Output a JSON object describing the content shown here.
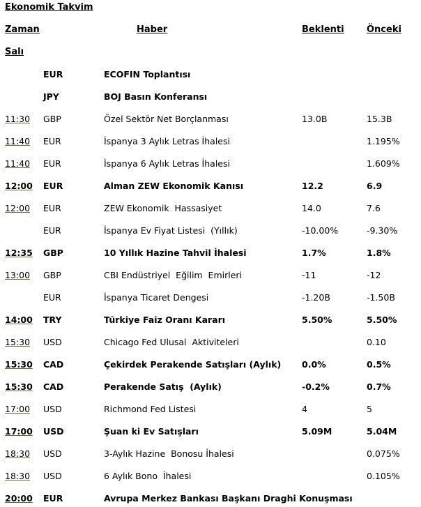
{
  "page": {
    "title": "Ekonomik Takvim"
  },
  "columns": {
    "time": "Zaman",
    "event": "Haber",
    "expected": "Beklenti",
    "previous": "Önceki"
  },
  "day": "Salı",
  "rows": [
    {
      "time": "",
      "currency": "EUR",
      "event": "ECOFIN Toplantısı",
      "expected": "",
      "previous": "",
      "bold": true
    },
    {
      "time": "",
      "currency": "JPY",
      "event": "BOJ Basın Konferansı",
      "expected": "",
      "previous": "",
      "bold": true
    },
    {
      "time": "11:30",
      "currency": "GBP",
      "event": "Özel Sektör Net Borçlanması",
      "expected": "13.0B",
      "previous": "15.3B",
      "bold": false
    },
    {
      "time": "11:40",
      "currency": "EUR",
      "event": "İspanya 3 Aylık Letras İhalesi",
      "expected": "",
      "previous": "1.195%",
      "bold": false
    },
    {
      "time": "11:40",
      "currency": "EUR",
      "event": "İspanya 6 Aylık Letras İhalesi",
      "expected": "",
      "previous": "1.609%",
      "bold": false
    },
    {
      "time": "12:00",
      "currency": "EUR",
      "event": "Alman ZEW Ekonomik Kanısı",
      "expected": "12.2",
      "previous": "6.9",
      "bold": true
    },
    {
      "time": "12:00",
      "currency": "EUR",
      "event": "ZEW Ekonomik  Hassasiyet",
      "expected": "14.0",
      "previous": "7.6",
      "bold": false
    },
    {
      "time": "",
      "currency": "EUR",
      "event": "İspanya Ev Fiyat Listesi  (Yıllık)",
      "expected": "-10.00%",
      "previous": "-9.30%",
      "bold": false
    },
    {
      "time": "12:35",
      "currency": "GBP",
      "event": "10 Yıllık Hazine Tahvil İhalesi",
      "expected": " 1.7%",
      "previous": "1.8%",
      "bold": true
    },
    {
      "time": "13:00",
      "currency": "GBP",
      "event": "CBI Endüstriyel  Eğilim  Emirleri",
      "expected": "-11",
      "previous": "-12",
      "bold": false
    },
    {
      "time": "",
      "currency": "EUR",
      "event": "İspanya Ticaret Dengesi",
      "expected": "-1.20B",
      "previous": "-1.50B",
      "bold": false
    },
    {
      "time": "14:00",
      "currency": "TRY",
      "event": "Türkiye Faiz Oranı Kararı",
      "expected": "5.50%",
      "previous": "5.50%",
      "bold": true
    },
    {
      "time": "15:30",
      "currency": "USD",
      "event": "Chicago Fed Ulusal  Aktiviteleri",
      "expected": "",
      "previous": "0.10",
      "bold": false
    },
    {
      "time": "15:30",
      "currency": "CAD",
      "event": "Çekirdek Perakende Satışları (Aylık)",
      "expected": " 0.0%",
      "previous": "0.5%",
      "bold": true
    },
    {
      "time": "15:30",
      "currency": "CAD",
      "event": "Perakende Satış  (Aylık)",
      "expected": "-0.2%",
      "previous": "0.7%",
      "bold": true
    },
    {
      "time": "17:00",
      "currency": "USD",
      "event": "Richmond Fed Listesi",
      "expected": "4",
      "previous": "5",
      "bold": false
    },
    {
      "time": "17:00",
      "currency": "USD",
      "event": "Şuan ki Ev Satışları",
      "expected": "5.09M",
      "previous": "5.04M",
      "bold": true
    },
    {
      "time": "18:30",
      "currency": "USD",
      "event": "3-Aylık Hazine  Bonosu İhalesi",
      "expected": "",
      "previous": "0.075%",
      "bold": false
    },
    {
      "time": "18:30",
      "currency": "USD",
      "event": "6 Aylık Bono  İhalesi",
      "expected": "",
      "previous": "0.105%",
      "bold": false
    },
    {
      "time": "20:00",
      "currency": "EUR",
      "event": "Avrupa Merkez Bankası Başkanı Draghi Konuşması",
      "expected": "",
      "previous": "",
      "bold": true
    }
  ]
}
